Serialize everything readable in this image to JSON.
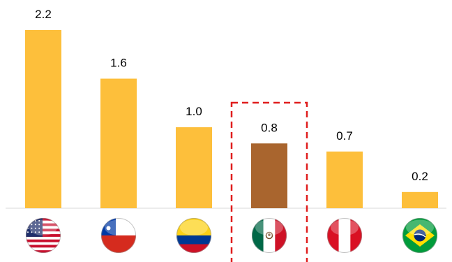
{
  "chart_data": {
    "type": "bar",
    "categories": [
      "United States",
      "Chile",
      "Colombia",
      "Mexico",
      "Peru",
      "Brazil"
    ],
    "values": [
      2.2,
      1.6,
      1.0,
      0.8,
      0.7,
      0.2
    ],
    "value_labels": [
      "2.2",
      "1.6",
      "1.0",
      "0.8",
      "0.7",
      "0.2"
    ],
    "ylim": [
      0,
      2.2
    ],
    "grid": false,
    "highlight": "Mexico",
    "colors": {
      "bar": "#FDBF3B",
      "highlight_bar": "#A9652E",
      "highlight_box": "#E01E1E",
      "axis": "#d9d9d9"
    },
    "flag_icons": [
      "us-flag-icon",
      "chile-flag-icon",
      "colombia-flag-icon",
      "mexico-flag-icon",
      "peru-flag-icon",
      "brazil-flag-icon"
    ]
  }
}
